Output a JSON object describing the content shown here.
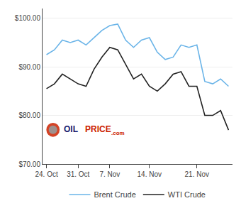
{
  "chart_data": {
    "type": "line",
    "categories": [
      "24. Oct",
      null,
      null,
      null,
      "31. Oct",
      null,
      null,
      null,
      "7. Nov",
      null,
      null,
      null,
      null,
      "14. Nov",
      null,
      null,
      null,
      null,
      null,
      "21. Nov",
      null,
      null,
      null,
      null
    ],
    "series": [
      {
        "name": "Brent Crude",
        "color": "#6ab4e8",
        "values": [
          92.5,
          93.5,
          95.5,
          95.0,
          95.5,
          94.5,
          96.0,
          97.5,
          98.5,
          98.8,
          95.5,
          94.0,
          95.5,
          96.0,
          93.0,
          91.5,
          92.0,
          94.5,
          94.0,
          94.5,
          87.0,
          86.5,
          87.5,
          86.0
        ]
      },
      {
        "name": "WTI Crude",
        "color": "#222222",
        "values": [
          85.5,
          86.5,
          88.5,
          87.5,
          86.5,
          86.0,
          89.5,
          92.0,
          94.0,
          93.5,
          90.5,
          87.5,
          88.5,
          86.0,
          85.0,
          86.5,
          88.5,
          89.0,
          86.0,
          86.0,
          80.0,
          80.0,
          81.0,
          77.0
        ]
      }
    ],
    "ylim": [
      70,
      102
    ],
    "yticks": [
      {
        "value": 70,
        "label": "$70.00"
      },
      {
        "value": 80,
        "label": "$80.00"
      },
      {
        "value": 90,
        "label": "$90.00"
      },
      {
        "value": 100,
        "label": "$100.00"
      }
    ],
    "grid": "y",
    "legend": "bottom",
    "annotations": [
      "OIL",
      "PRICE",
      ".com"
    ]
  }
}
